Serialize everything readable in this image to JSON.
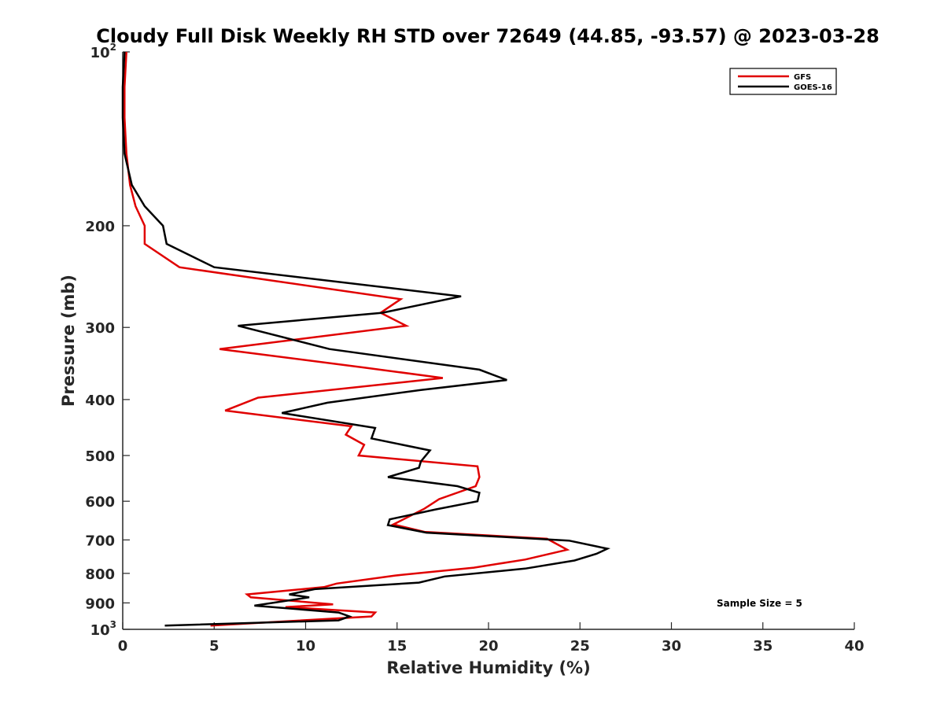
{
  "chart_data": {
    "type": "line",
    "title": "Cloudy Full Disk Weekly RH STD over 72649 (44.85, -93.57) @ 2023-03-28",
    "xlabel": "Relative Humidity (%)",
    "ylabel": "Pressure (mb)",
    "xlim": [
      0,
      40
    ],
    "ylim": [
      100,
      1000
    ],
    "y_scale": "log",
    "y_reversed": true,
    "x_ticks": [
      "0",
      "5",
      "10",
      "15",
      "20",
      "25",
      "30",
      "35",
      "40"
    ],
    "y_ticks": [
      {
        "value": 100,
        "label": "10",
        "sup": "2"
      },
      {
        "value": 200,
        "label": "200",
        "sup": ""
      },
      {
        "value": 300,
        "label": "300",
        "sup": ""
      },
      {
        "value": 400,
        "label": "400",
        "sup": ""
      },
      {
        "value": 500,
        "label": "500",
        "sup": ""
      },
      {
        "value": 600,
        "label": "600",
        "sup": ""
      },
      {
        "value": 700,
        "label": "700",
        "sup": ""
      },
      {
        "value": 800,
        "label": "800",
        "sup": ""
      },
      {
        "value": 900,
        "label": "900",
        "sup": ""
      },
      {
        "value": 1000,
        "label": "10",
        "sup": "3"
      }
    ],
    "grid": false,
    "legend_position": "top-right",
    "series": [
      {
        "name": "GFS",
        "color": "#e00000",
        "points": [
          [
            0.2,
            100
          ],
          [
            0.1,
            115
          ],
          [
            0.1,
            130
          ],
          [
            0.2,
            150
          ],
          [
            0.4,
            170
          ],
          [
            0.7,
            185
          ],
          [
            1.2,
            200
          ],
          [
            1.2,
            215
          ],
          [
            3.1,
            236
          ],
          [
            15.2,
            268
          ],
          [
            14.1,
            283
          ],
          [
            15.5,
            298
          ],
          [
            5.3,
            327
          ],
          [
            13.2,
            352
          ],
          [
            17.5,
            367
          ],
          [
            7.4,
            397
          ],
          [
            5.6,
            418
          ],
          [
            12.5,
            445
          ],
          [
            12.2,
            460
          ],
          [
            13.2,
            479
          ],
          [
            12.9,
            500
          ],
          [
            19.4,
            522
          ],
          [
            19.5,
            545
          ],
          [
            19.3,
            565
          ],
          [
            17.3,
            595
          ],
          [
            16.5,
            618
          ],
          [
            14.8,
            658
          ],
          [
            16.5,
            678
          ],
          [
            23.2,
            697
          ],
          [
            24.3,
            728
          ],
          [
            22.0,
            757
          ],
          [
            19.2,
            782
          ],
          [
            14.9,
            807
          ],
          [
            11.7,
            833
          ],
          [
            11.0,
            845
          ],
          [
            6.8,
            870
          ],
          [
            7.0,
            880
          ],
          [
            11.5,
            905
          ],
          [
            8.9,
            915
          ],
          [
            13.8,
            935
          ],
          [
            13.6,
            950
          ],
          [
            4.8,
            985
          ]
        ]
      },
      {
        "name": "GOES-16",
        "color": "#000000",
        "points": [
          [
            0.1,
            100
          ],
          [
            0.0,
            115
          ],
          [
            0.0,
            130
          ],
          [
            0.1,
            150
          ],
          [
            0.5,
            170
          ],
          [
            1.2,
            185
          ],
          [
            2.2,
            200
          ],
          [
            2.4,
            215
          ],
          [
            5.0,
            236
          ],
          [
            18.5,
            265
          ],
          [
            14.2,
            283
          ],
          [
            6.3,
            298
          ],
          [
            11.3,
            327
          ],
          [
            19.5,
            355
          ],
          [
            21.0,
            370
          ],
          [
            16.3,
            385
          ],
          [
            11.2,
            405
          ],
          [
            8.7,
            422
          ],
          [
            13.8,
            448
          ],
          [
            13.6,
            467
          ],
          [
            16.8,
            490
          ],
          [
            16.3,
            512
          ],
          [
            16.2,
            525
          ],
          [
            14.5,
            545
          ],
          [
            18.3,
            565
          ],
          [
            19.5,
            580
          ],
          [
            19.4,
            600
          ],
          [
            17.1,
            620
          ],
          [
            14.6,
            645
          ],
          [
            14.5,
            660
          ],
          [
            16.6,
            680
          ],
          [
            24.4,
            702
          ],
          [
            26.5,
            725
          ],
          [
            25.9,
            740
          ],
          [
            24.7,
            760
          ],
          [
            22.0,
            785
          ],
          [
            17.6,
            810
          ],
          [
            16.2,
            830
          ],
          [
            10.5,
            852
          ],
          [
            9.1,
            870
          ],
          [
            10.2,
            880
          ],
          [
            7.2,
            910
          ],
          [
            11.8,
            935
          ],
          [
            12.4,
            950
          ],
          [
            11.8,
            965
          ],
          [
            2.3,
            985
          ]
        ]
      }
    ],
    "legend": [
      "GFS",
      "GOES-16"
    ],
    "annotations": [
      "Sample Size = 5"
    ]
  }
}
